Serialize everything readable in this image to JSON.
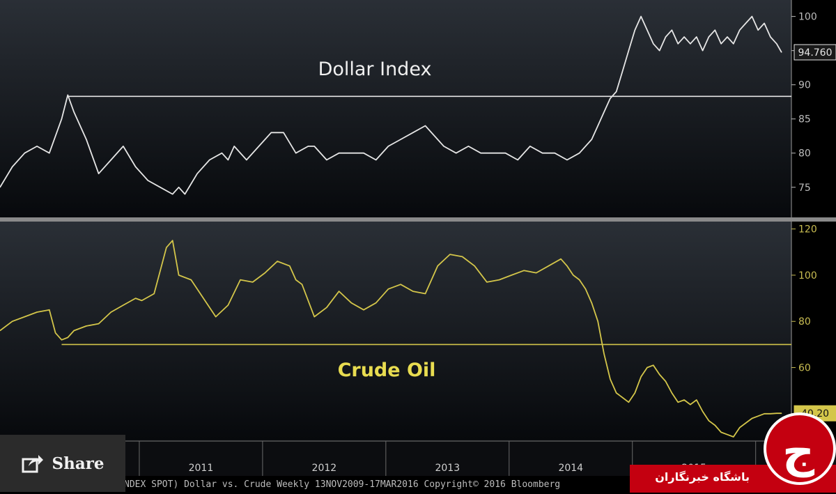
{
  "chart_data": [
    {
      "type": "line",
      "title": "Dollar Index",
      "color": "#e6e6e6",
      "ylim": [
        71,
        102
      ],
      "yticks": [
        75,
        80,
        85,
        90,
        95,
        100
      ],
      "last_value_label": "94.760",
      "reference_line": 88.3,
      "grid": false,
      "series": [
        {
          "x": [
            2009.87,
            2009.97,
            2010.07,
            2010.17,
            2010.27,
            2010.37,
            2010.42,
            2010.47,
            2010.57,
            2010.67,
            2010.77,
            2010.87,
            2010.97,
            2011.07,
            2011.17,
            2011.27,
            2011.32,
            2011.37,
            2011.47,
            2011.57,
            2011.67,
            2011.72,
            2011.77,
            2011.87,
            2011.97,
            2012.07,
            2012.17,
            2012.27,
            2012.37,
            2012.42,
            2012.52,
            2012.62,
            2012.72,
            2012.82,
            2012.92,
            2013.02,
            2013.12,
            2013.22,
            2013.32,
            2013.42,
            2013.47,
            2013.57,
            2013.67,
            2013.77,
            2013.87,
            2013.97,
            2014.07,
            2014.17,
            2014.27,
            2014.37,
            2014.47,
            2014.57,
            2014.62,
            2014.67,
            2014.72,
            2014.77,
            2014.82,
            2014.87,
            2014.92,
            2014.97,
            2015.02,
            2015.07,
            2015.12,
            2015.17,
            2015.22,
            2015.27,
            2015.32,
            2015.37,
            2015.42,
            2015.47,
            2015.52,
            2015.57,
            2015.62,
            2015.67,
            2015.72,
            2015.77,
            2015.82,
            2015.87,
            2015.92,
            2015.97,
            2016.02,
            2016.07,
            2016.12,
            2016.17,
            2016.21
          ],
          "values": [
            75,
            78,
            80,
            81,
            80,
            85,
            88.5,
            86,
            82,
            77,
            79,
            81,
            78,
            76,
            75,
            74,
            75,
            74,
            77,
            79,
            80,
            79,
            81,
            79,
            81,
            83,
            83,
            80,
            81,
            81,
            79,
            80,
            80,
            80,
            79,
            81,
            82,
            83,
            84,
            82,
            81,
            80,
            81,
            80,
            80,
            80,
            79,
            81,
            80,
            80,
            79,
            80,
            81,
            82,
            84,
            86,
            88,
            89,
            92,
            95,
            98,
            100,
            98,
            96,
            95,
            97,
            98,
            96,
            97,
            96,
            97,
            95,
            97,
            98,
            96,
            97,
            96,
            98,
            99,
            100,
            98,
            99,
            97,
            96,
            94.76
          ]
        }
      ]
    },
    {
      "type": "line",
      "title": "Crude Oil",
      "color": "#d4c64a",
      "ylim": [
        30,
        122
      ],
      "yticks": [
        40,
        60,
        80,
        100,
        120
      ],
      "last_value_label": "40.20",
      "reference_line": 70,
      "grid": false,
      "series": [
        {
          "x": [
            2009.87,
            2009.97,
            2010.07,
            2010.17,
            2010.27,
            2010.32,
            2010.37,
            2010.42,
            2010.47,
            2010.57,
            2010.67,
            2010.77,
            2010.87,
            2010.97,
            2011.02,
            2011.12,
            2011.22,
            2011.27,
            2011.32,
            2011.42,
            2011.52,
            2011.62,
            2011.72,
            2011.82,
            2011.92,
            2012.02,
            2012.12,
            2012.22,
            2012.27,
            2012.32,
            2012.42,
            2012.52,
            2012.62,
            2012.72,
            2012.82,
            2012.92,
            2013.02,
            2013.12,
            2013.22,
            2013.32,
            2013.42,
            2013.52,
            2013.62,
            2013.72,
            2013.82,
            2013.92,
            2014.02,
            2014.12,
            2014.22,
            2014.32,
            2014.42,
            2014.47,
            2014.52,
            2014.57,
            2014.62,
            2014.67,
            2014.72,
            2014.77,
            2014.82,
            2014.87,
            2014.92,
            2014.97,
            2015.02,
            2015.07,
            2015.12,
            2015.17,
            2015.22,
            2015.27,
            2015.32,
            2015.37,
            2015.42,
            2015.47,
            2015.52,
            2015.57,
            2015.62,
            2015.67,
            2015.72,
            2015.77,
            2015.82,
            2015.87,
            2015.92,
            2015.97,
            2016.02,
            2016.07,
            2016.12,
            2016.17,
            2016.21
          ],
          "values": [
            76,
            80,
            82,
            84,
            85,
            75,
            72,
            73,
            76,
            78,
            79,
            84,
            87,
            90,
            89,
            92,
            112,
            115,
            100,
            98,
            90,
            82,
            87,
            98,
            97,
            101,
            106,
            104,
            98,
            96,
            82,
            86,
            93,
            88,
            85,
            88,
            94,
            96,
            93,
            92,
            104,
            109,
            108,
            104,
            97,
            98,
            100,
            102,
            101,
            104,
            107,
            104,
            100,
            98,
            94,
            88,
            80,
            66,
            55,
            49,
            47,
            45,
            49,
            56,
            60,
            61,
            57,
            54,
            49,
            45,
            46,
            44,
            46,
            41,
            37,
            35,
            32,
            31,
            30,
            34,
            36,
            38,
            39,
            40,
            40,
            40.2,
            40.2
          ]
        }
      ]
    }
  ],
  "x_axis": {
    "range": [
      2009.87,
      2016.29
    ],
    "tick_labels": [
      "2011",
      "2012",
      "2013",
      "2014",
      "2015"
    ]
  },
  "footer": {
    "text": "NDEX SPOT) Dollar vs. Crude  Weekly 13NOV2009-17MAR2016  Copyright© 2016 Bloomberg"
  },
  "share": {
    "label": "Share",
    "icon": "share-icon"
  },
  "badge": {
    "text": "باشگاه خبرنگاران",
    "logo_glyph": "ج",
    "icon": "news-logo-icon"
  }
}
